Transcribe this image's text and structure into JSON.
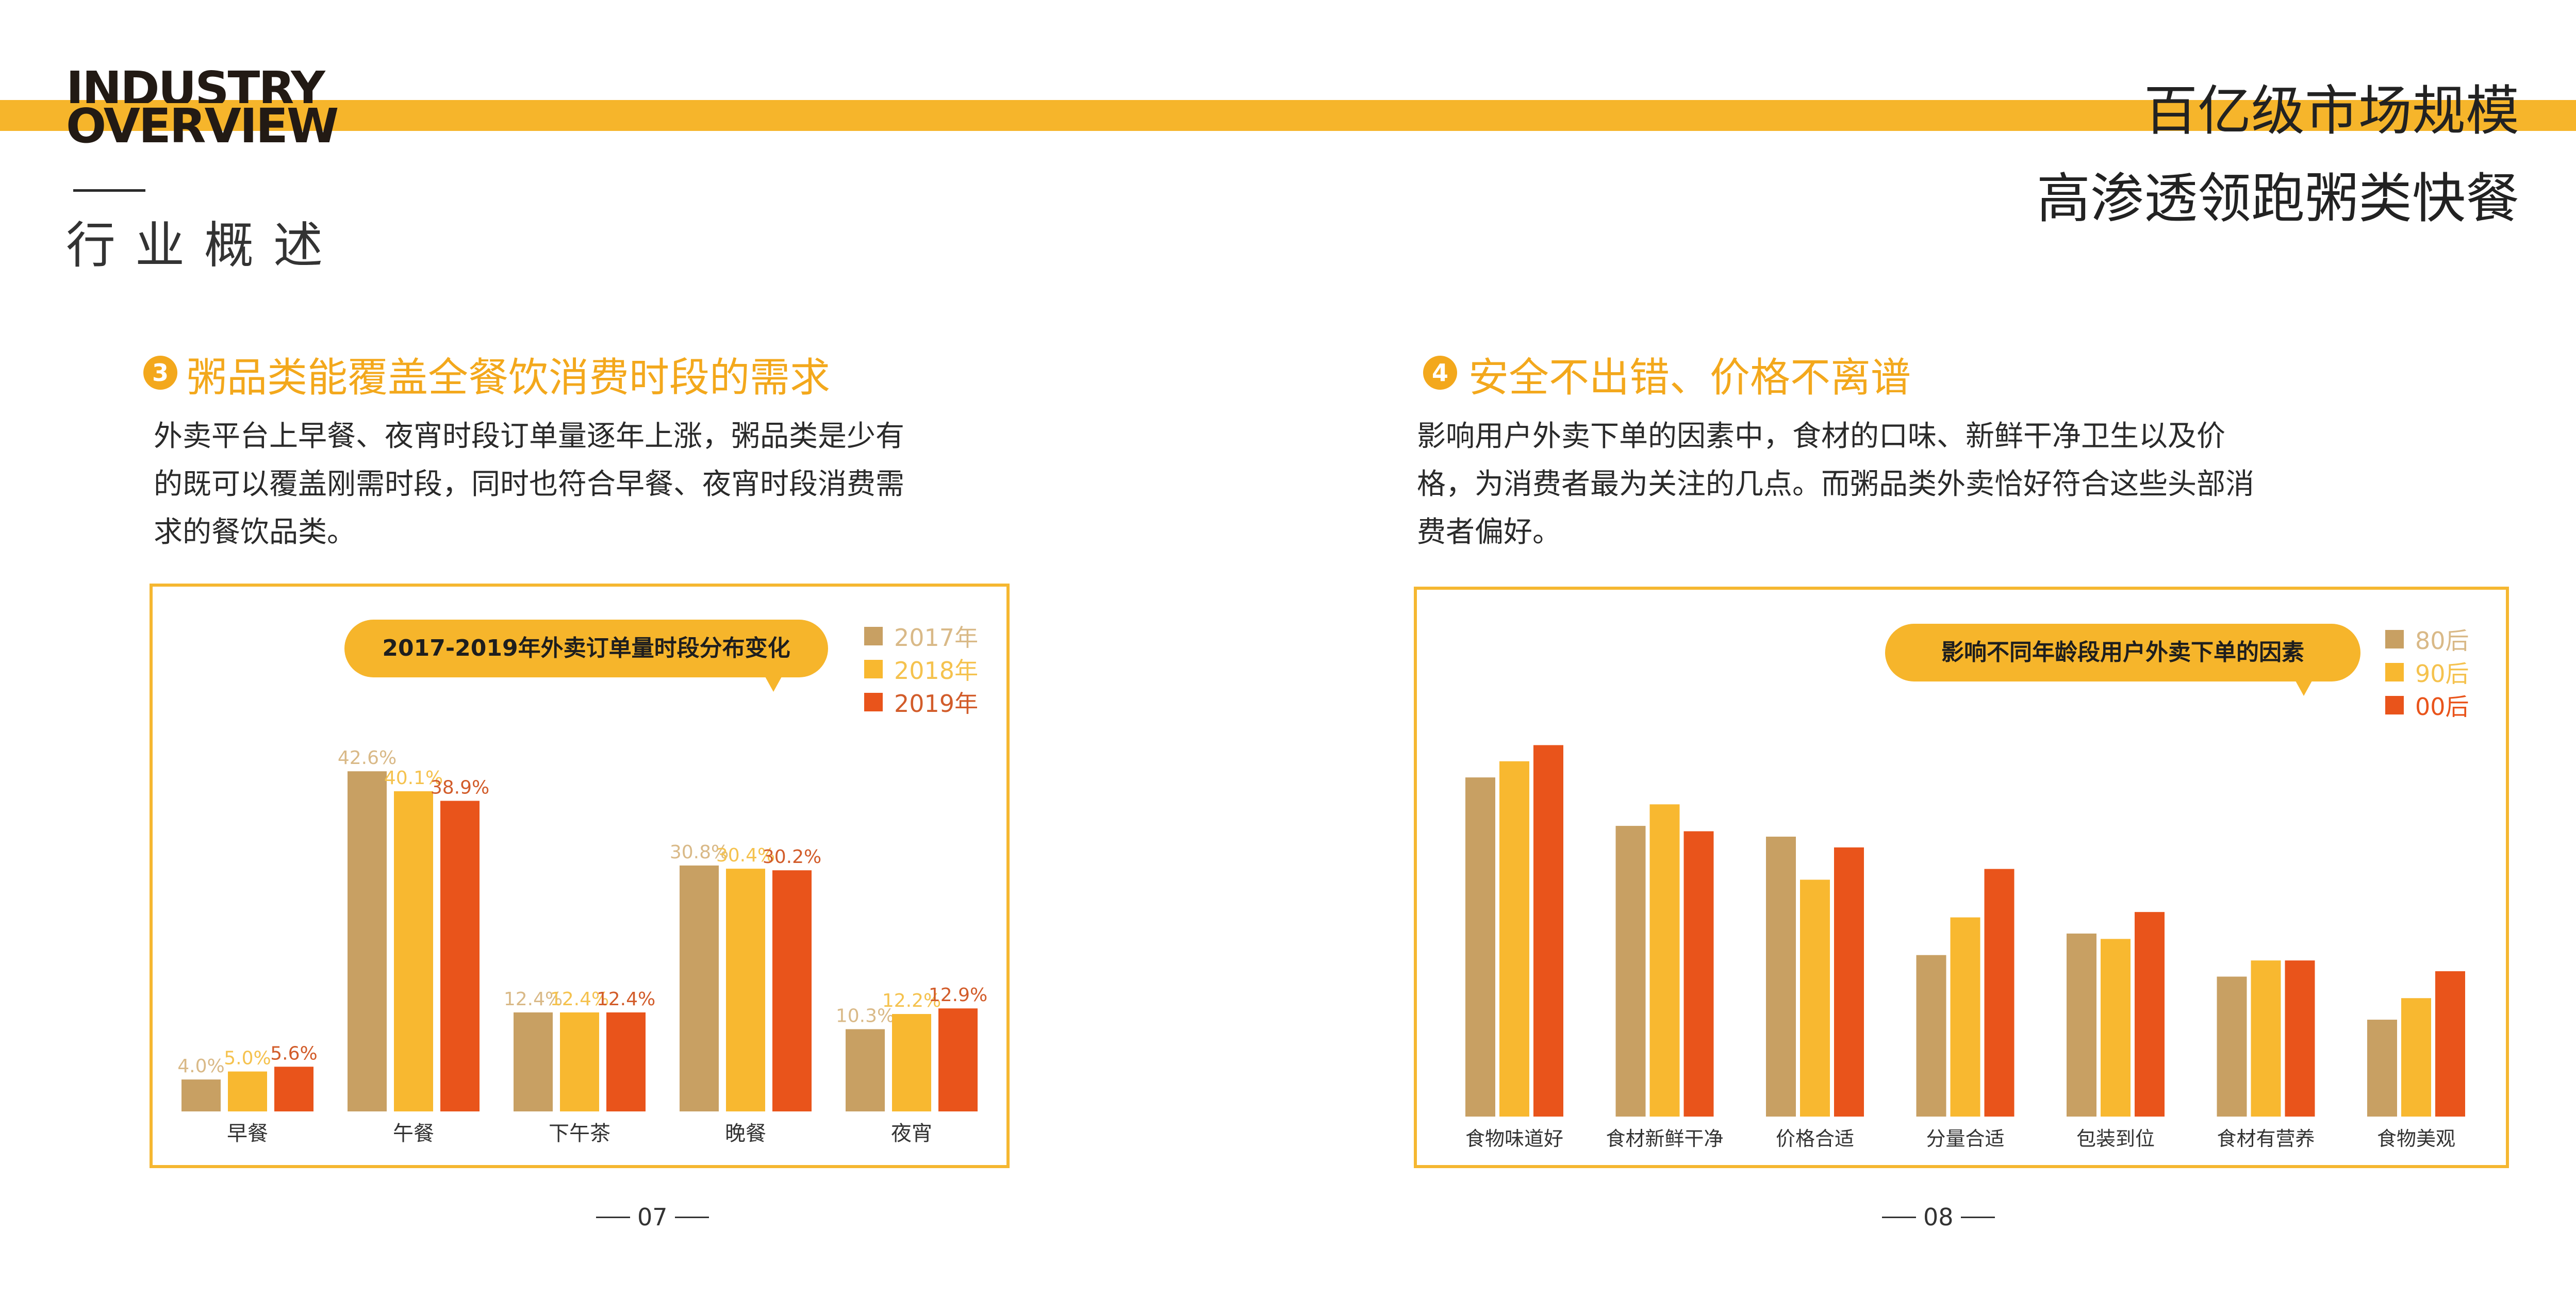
{
  "header": {
    "en_line1": "INDUSTRY",
    "en_line2": "OVERVIEW",
    "cn_title": "行业概述",
    "right_line1": "百亿级市场规模",
    "right_line2": "高渗透领跑粥类快餐"
  },
  "colors": {
    "accent": "#f6b52b",
    "tan": "#c8a063",
    "yellow": "#f8b830",
    "orange": "#e9541b",
    "heading": "#f3a81c"
  },
  "left": {
    "num": "3",
    "title": "粥品类能覆盖全餐饮消费时段的需求",
    "para": [
      "外卖平台上早餐、夜宵时段订单量逐年上涨，粥品类是少有",
      "的既可以覆盖刚需时段，同时也符合早餐、夜宵时段消费需",
      "求的餐饮品类。"
    ],
    "page": "07"
  },
  "right": {
    "num": "4",
    "title": "安全不出错、价格不离谱",
    "para": [
      "影响用户外卖下单的因素中，食材的口味、新鲜干净卫生以及价",
      "格，为消费者最为关注的几点。而粥品类外卖恰好符合这些头部消",
      "费者偏好。"
    ],
    "page": "08"
  },
  "chart_data": [
    {
      "type": "bar",
      "title": "2017-2019年外卖订单量时段分布变化",
      "categories": [
        "早餐",
        "午餐",
        "下午茶",
        "晚餐",
        "夜宵"
      ],
      "series": [
        {
          "name": "2017年",
          "color": "#c8a063",
          "label_color": "#d9b987",
          "values": [
            4.0,
            42.6,
            12.4,
            30.8,
            10.3
          ],
          "labels": [
            "4.0%",
            "42.6%",
            "12.4%",
            "30.8%",
            "10.3%"
          ]
        },
        {
          "name": "2018年",
          "color": "#f8b830",
          "label_color": "#f5c24e",
          "values": [
            5.0,
            40.1,
            12.4,
            30.4,
            12.2
          ],
          "labels": [
            "5.0%",
            "40.1%",
            "12.4%",
            "30.4%",
            "12.2%"
          ]
        },
        {
          "name": "2019年",
          "color": "#e9541b",
          "label_color": "#d25c2a",
          "values": [
            5.6,
            38.9,
            12.4,
            30.2,
            12.9
          ],
          "labels": [
            "5.6%",
            "38.9%",
            "12.4%",
            "30.2%",
            "12.9%"
          ]
        }
      ],
      "ylim": [
        0,
        45
      ],
      "grid": false,
      "legend": "top-right"
    },
    {
      "type": "bar",
      "title": "影响不同年龄段用户外卖下单的因素",
      "categories": [
        "食物味道好",
        "食材新鲜干净",
        "价格合适",
        "分量合适",
        "包装到位",
        "食材有营养",
        "食物美观"
      ],
      "series": [
        {
          "name": "80后",
          "color": "#c8a063",
          "values": [
            63,
            54,
            52,
            30,
            34,
            26,
            18
          ]
        },
        {
          "name": "90后",
          "color": "#f8b830",
          "values": [
            66,
            58,
            44,
            37,
            33,
            29,
            22
          ]
        },
        {
          "name": "00后",
          "color": "#e9541b",
          "values": [
            69,
            53,
            50,
            46,
            38,
            29,
            27
          ]
        }
      ],
      "ylim": [
        0,
        70
      ],
      "grid": false,
      "legend": "top-right"
    }
  ]
}
